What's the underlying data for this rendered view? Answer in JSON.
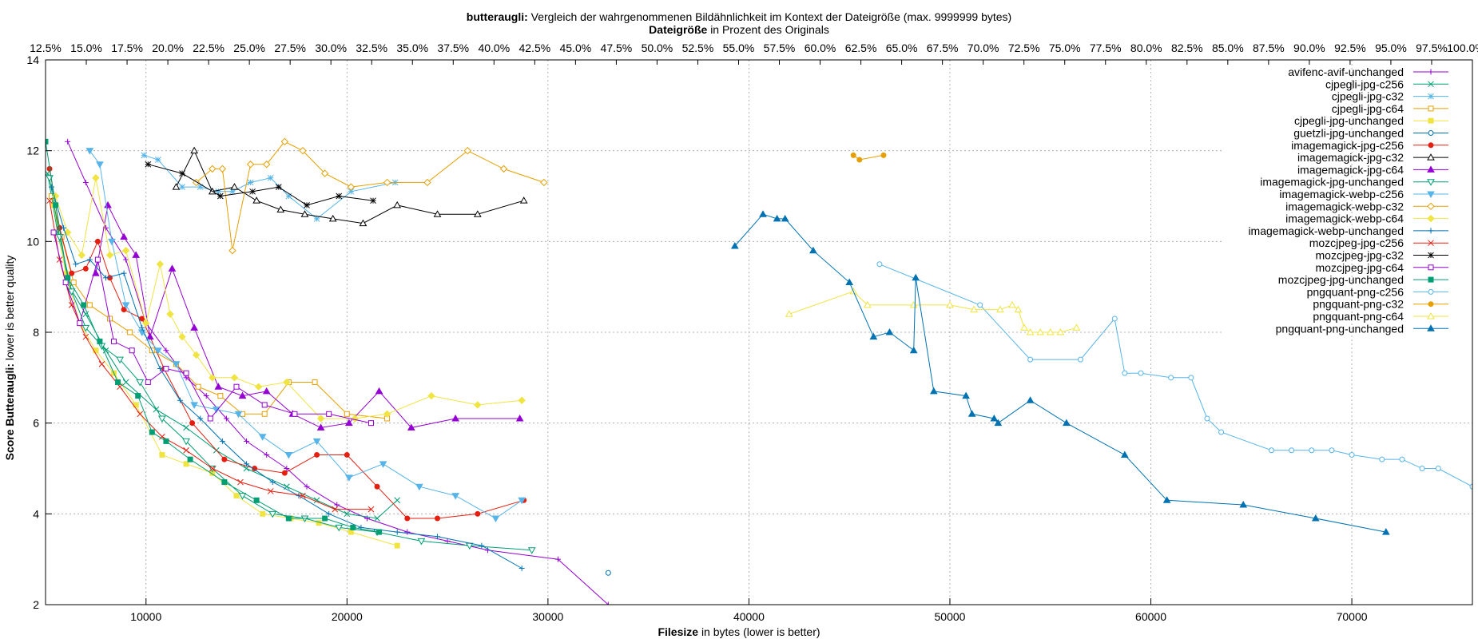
{
  "chart_data": {
    "type": "line",
    "title_bold": "butteraugli:",
    "title_rest": "Vergleich der wahrgenommenen Bildähnlichkeit im Kontext der Dateigröße (max. 9999999 bytes)",
    "subtitle_bold": "Dateigröße",
    "subtitle_rest": "in Prozent des Originals",
    "xlabel_bold": "Filesize",
    "xlabel_rest": "in bytes (lower is better)",
    "ylabel_bold": "Score Butteraugli:",
    "ylabel_rest": "lower is better quality",
    "xlim": [
      5000,
      76000
    ],
    "ylim": [
      2,
      14
    ],
    "x_ticks": [
      10000,
      20000,
      30000,
      40000,
      50000,
      60000,
      70000
    ],
    "y_ticks": [
      2,
      4,
      6,
      8,
      10,
      12,
      14
    ],
    "top_axis": {
      "start_label": "12.5%",
      "end_label": "100.0%",
      "tick_step": "2.5%"
    },
    "grid": true,
    "legend_position": "top-right",
    "series": [
      {
        "name": "avifenc-avif-unchanged",
        "color": "#9400d3",
        "marker": "plus",
        "x": [
          6100,
          7000,
          8000,
          9000,
          10000,
          11000,
          12000,
          13000,
          14000,
          15000,
          16000,
          17000,
          18000,
          19500,
          21000,
          23000,
          25000,
          27000,
          30500,
          33000
        ],
        "y": [
          12.2,
          11.3,
          10.3,
          9.6,
          8.2,
          7.6,
          7.0,
          6.6,
          6.1,
          5.6,
          5.3,
          5.0,
          4.6,
          4.2,
          3.9,
          3.6,
          3.4,
          3.2,
          3.0,
          2.0
        ]
      },
      {
        "name": "cjpegli-jpg-c256",
        "color": "#009e73",
        "marker": "x",
        "x": [
          5100,
          5600,
          6200,
          7000,
          8000,
          9000,
          10500,
          12000,
          13500,
          15000,
          17000,
          18500,
          20000,
          21500,
          22500
        ],
        "y": [
          11.5,
          10.2,
          9.0,
          8.4,
          7.6,
          6.9,
          6.3,
          5.9,
          5.4,
          5.0,
          4.6,
          4.3,
          4.0,
          3.9,
          4.3
        ]
      },
      {
        "name": "cjpegli-jpg-c32",
        "color": "#56b4e9",
        "marker": "star",
        "x": [
          9900,
          10600,
          11800,
          12700,
          13600,
          14300,
          15200,
          16200,
          17100,
          18500,
          20200,
          22400
        ],
        "y": [
          11.9,
          11.8,
          11.2,
          11.2,
          11.1,
          11.1,
          11.3,
          11.4,
          11.0,
          10.5,
          11.1,
          11.3
        ]
      },
      {
        "name": "cjpegli-jpg-c64",
        "color": "#e69f00",
        "marker": "square",
        "x": [
          5300,
          5800,
          6400,
          7200,
          8200,
          9200,
          10300,
          11500,
          12600,
          13700,
          14800,
          15900,
          17100,
          18400,
          20000,
          22000
        ],
        "y": [
          11.0,
          10.1,
          9.1,
          8.6,
          8.3,
          8.0,
          7.6,
          7.3,
          6.8,
          6.6,
          6.2,
          6.2,
          6.9,
          6.9,
          6.2,
          6.1
        ]
      },
      {
        "name": "cjpegli-jpg-unchanged",
        "color": "#f0e442",
        "marker": "filled-square",
        "x": [
          5400,
          6000,
          6700,
          7500,
          8400,
          9500,
          10800,
          12000,
          13300,
          14500,
          15800,
          17200,
          18600,
          20200,
          22500
        ],
        "y": [
          10.8,
          9.3,
          8.2,
          7.6,
          7.1,
          6.4,
          5.3,
          5.1,
          4.9,
          4.4,
          4.0,
          3.9,
          3.8,
          3.6,
          3.3
        ]
      },
      {
        "name": "guetzli-jpg-unchanged",
        "color": "#0072b2",
        "marker": "circle",
        "x": [
          33000
        ],
        "y": [
          2.7
        ]
      },
      {
        "name": "imagemagick-jpg-c256",
        "color": "#e51e10",
        "marker": "filled-circle",
        "x": [
          5200,
          5700,
          6300,
          7000,
          7600,
          8200,
          8900,
          9800,
          10900,
          12300,
          13900,
          15400,
          16900,
          18500,
          20000,
          21500,
          23000,
          24500,
          26500,
          28800
        ],
        "y": [
          11.6,
          10.3,
          9.3,
          9.4,
          10.0,
          9.2,
          8.5,
          8.3,
          7.2,
          6.0,
          5.2,
          5.0,
          4.9,
          5.3,
          5.3,
          4.6,
          3.9,
          3.9,
          4.0,
          4.3
        ]
      },
      {
        "name": "imagemagick-jpg-c32",
        "color": "#000000",
        "marker": "triangle",
        "x": [
          11500,
          12400,
          13300,
          14400,
          15500,
          16700,
          17900,
          19300,
          20800,
          22500,
          24500,
          26500,
          28800
        ],
        "y": [
          11.2,
          12.0,
          11.1,
          11.2,
          10.9,
          10.7,
          10.6,
          10.5,
          10.4,
          10.8,
          10.6,
          10.6,
          10.9
        ]
      },
      {
        "name": "imagemagick-jpg-c64",
        "color": "#9400d3",
        "marker": "filled-triangle",
        "x": [
          7500,
          8100,
          8900,
          9500,
          10200,
          11300,
          12400,
          13600,
          14800,
          16000,
          17300,
          18700,
          20100,
          21600,
          23200,
          25400,
          28600
        ],
        "y": [
          9.3,
          10.8,
          10.1,
          9.7,
          7.9,
          9.4,
          8.1,
          6.8,
          6.6,
          6.7,
          6.2,
          5.9,
          6.0,
          6.7,
          5.9,
          6.1,
          6.1
        ]
      },
      {
        "name": "imagemagick-jpg-unchanged",
        "color": "#009e73",
        "marker": "triangle-down",
        "x": [
          5200,
          5700,
          6300,
          7000,
          7800,
          8700,
          9700,
          10800,
          12000,
          13300,
          14800,
          16300,
          17900,
          19600,
          21500,
          23700,
          26100,
          29200
        ],
        "y": [
          11.4,
          10.1,
          8.9,
          8.1,
          7.7,
          7.4,
          6.9,
          6.1,
          5.6,
          5.0,
          4.4,
          4.0,
          3.9,
          3.7,
          3.6,
          3.4,
          3.3,
          3.2
        ]
      },
      {
        "name": "imagemagick-webp-c256",
        "color": "#56b4e9",
        "marker": "filled-triangle-down",
        "x": [
          7200,
          7700,
          8300,
          9000,
          9800,
          10600,
          11500,
          12400,
          13500,
          14600,
          15800,
          17100,
          18500,
          20100,
          21800,
          23600,
          25400,
          27400,
          28700
        ],
        "y": [
          12.0,
          11.7,
          10.0,
          8.6,
          8.0,
          7.6,
          7.3,
          6.4,
          6.3,
          6.2,
          5.7,
          5.3,
          5.6,
          4.8,
          5.1,
          4.6,
          4.4,
          3.9,
          4.3
        ]
      },
      {
        "name": "imagemagick-webp-c32",
        "color": "#e69f00",
        "marker": "diamond",
        "x": [
          12500,
          13300,
          13800,
          14300,
          15200,
          16000,
          16900,
          17800,
          18900,
          20200,
          22000,
          24000,
          26000,
          27800,
          29800
        ],
        "y": [
          11.3,
          11.6,
          11.6,
          9.8,
          11.7,
          11.7,
          12.2,
          12.0,
          11.5,
          11.2,
          11.3,
          11.3,
          12.0,
          11.6,
          11.3
        ]
      },
      {
        "name": "imagemagick-webp-c64",
        "color": "#f0e442",
        "marker": "filled-diamond",
        "x": [
          5500,
          6100,
          6800,
          7500,
          8200,
          9000,
          10000,
          10700,
          11200,
          11800,
          12500,
          13300,
          14400,
          15600,
          17000,
          18700,
          20400,
          22000,
          24200,
          26500,
          28700
        ],
        "y": [
          11.0,
          10.2,
          9.7,
          11.4,
          9.7,
          9.8,
          8.2,
          9.5,
          8.4,
          7.9,
          7.5,
          7.0,
          7.0,
          6.8,
          6.9,
          6.1,
          6.1,
          6.2,
          6.6,
          6.4,
          6.5
        ]
      },
      {
        "name": "imagemagick-webp-unchanged",
        "color": "#0072b2",
        "marker": "plus",
        "x": [
          5300,
          5900,
          6500,
          7200,
          8000,
          8900,
          9800,
          10700,
          11700,
          12700,
          13800,
          15000,
          16300,
          17600,
          19100,
          20700,
          22500,
          24500,
          26700,
          28700
        ],
        "y": [
          11.2,
          10.3,
          9.5,
          9.6,
          9.2,
          9.3,
          8.1,
          7.2,
          6.5,
          6.1,
          5.6,
          5.1,
          4.7,
          4.4,
          4.0,
          3.7,
          3.6,
          3.5,
          3.3,
          2.8
        ]
      },
      {
        "name": "mozcjpeg-jpg-c256",
        "color": "#e51e10",
        "marker": "x",
        "x": [
          5200,
          5700,
          6300,
          7000,
          7800,
          8700,
          9700,
          10800,
          12000,
          13300,
          14700,
          16200,
          17800,
          19400,
          21200
        ],
        "y": [
          10.9,
          9.6,
          8.6,
          7.9,
          7.3,
          6.8,
          6.2,
          5.7,
          5.4,
          5.0,
          4.7,
          4.5,
          4.4,
          4.1,
          4.1
        ]
      },
      {
        "name": "mozcjpeg-jpg-c32",
        "color": "#000000",
        "marker": "star",
        "x": [
          10100,
          11800,
          13700,
          15300,
          16600,
          18000,
          19600,
          21300
        ],
        "y": [
          11.7,
          11.5,
          11.0,
          11.1,
          11.2,
          10.8,
          11.0,
          10.9
        ]
      },
      {
        "name": "mozcjpeg-jpg-c64",
        "color": "#9400d3",
        "marker": "square",
        "x": [
          5400,
          6000,
          6700,
          7600,
          8400,
          9300,
          10100,
          11000,
          12000,
          13200,
          14500,
          15900,
          17400,
          19100,
          21200
        ],
        "y": [
          10.2,
          9.1,
          8.2,
          9.6,
          7.8,
          7.6,
          6.9,
          7.2,
          7.1,
          6.1,
          6.8,
          6.4,
          6.2,
          6.2,
          6.0
        ]
      },
      {
        "name": "mozcjpeg-jpg-unchanged",
        "color": "#009e73",
        "marker": "filled-square",
        "x": [
          5000,
          5500,
          6100,
          6900,
          7700,
          8600,
          9600,
          10300,
          11000,
          12200,
          13900,
          15500,
          17100,
          18900,
          20300,
          21600
        ],
        "y": [
          12.2,
          10.8,
          9.2,
          8.6,
          7.8,
          6.9,
          6.6,
          5.8,
          5.6,
          5.2,
          4.7,
          4.3,
          3.9,
          3.9,
          3.7,
          3.6
        ]
      },
      {
        "name": "pngquant-png-c256",
        "color": "#56b4e9",
        "marker": "circle",
        "x": [
          46500,
          51500,
          54000,
          56500,
          58200,
          58700,
          59500,
          61000,
          62000,
          62800,
          63500,
          66000,
          67000,
          68000,
          69000,
          70000,
          71500,
          72500,
          73500,
          74300,
          76000
        ],
        "y": [
          9.5,
          8.6,
          7.4,
          7.4,
          8.3,
          7.1,
          7.1,
          7.0,
          7.0,
          6.1,
          5.8,
          5.4,
          5.4,
          5.4,
          5.4,
          5.3,
          5.2,
          5.2,
          5.0,
          5.0,
          4.6
        ]
      },
      {
        "name": "pngquant-png-c32",
        "color": "#e69f00",
        "marker": "filled-circle",
        "x": [
          45200,
          45500,
          46700
        ],
        "y": [
          11.9,
          11.8,
          11.9
        ]
      },
      {
        "name": "pngquant-png-c64",
        "color": "#f0e442",
        "marker": "triangle",
        "x": [
          42000,
          45200,
          45900,
          48200,
          50000,
          51200,
          52500,
          53100,
          53400,
          53700,
          54000,
          54500,
          55000,
          55500,
          56300
        ],
        "y": [
          8.4,
          8.9,
          8.6,
          8.6,
          8.6,
          8.5,
          8.5,
          8.6,
          8.5,
          8.1,
          8.0,
          8.0,
          8.0,
          8.0,
          8.1
        ]
      },
      {
        "name": "pngquant-png-unchanged",
        "color": "#0072b2",
        "marker": "filled-triangle",
        "x": [
          39300,
          40700,
          41400,
          41800,
          43200,
          45000,
          46200,
          47000,
          48200,
          48300,
          49200,
          50800,
          51100,
          52200,
          52400,
          54000,
          55800,
          58700,
          60800,
          64600,
          68200,
          71700
        ],
        "y": [
          9.9,
          10.6,
          10.5,
          10.5,
          9.8,
          9.1,
          7.9,
          8.0,
          7.6,
          9.2,
          6.7,
          6.6,
          6.2,
          6.1,
          6.0,
          6.5,
          6.0,
          5.3,
          4.3,
          4.2,
          3.9,
          3.6
        ]
      }
    ]
  }
}
